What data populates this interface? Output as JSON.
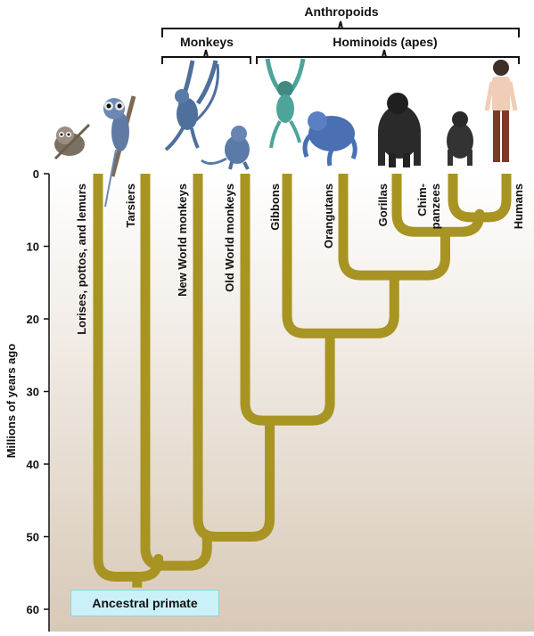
{
  "groups": {
    "anthropoids": "Anthropoids",
    "monkeys": "Monkeys",
    "hominoids": "Hominoids (apes)"
  },
  "axis": {
    "title": "Millions of years ago",
    "ticks": [
      "0",
      "10",
      "20",
      "30",
      "40",
      "50",
      "60"
    ]
  },
  "taxa": [
    "Lorises, pottos, and lemurs",
    "Tarsiers",
    "New World monkeys",
    "Old World monkeys",
    "Gibbons",
    "Orangutans",
    "Gorillas",
    "Chim-\npanzees",
    "Humans"
  ],
  "root_label": "Ancestral primate",
  "colors": {
    "branch": "#a89422",
    "background_top": "#ffffff",
    "background_bottom": "#d8c9b7",
    "root_box": "#c9f1f7"
  },
  "tree": {
    "divergence_mya": {
      "humans_chimpanzees": 6,
      "gorillas": 8,
      "orangutans": 14,
      "gibbons": 22,
      "old_world_monkeys_hominoids": 34,
      "new_world_old_world": 50,
      "tarsiers_anthropoids": 54,
      "root": 57
    }
  },
  "illustrations": [
    "loris-icon",
    "tarsier-icon",
    "spider-monkey-icon",
    "macaque-icon",
    "gibbon-icon",
    "orangutan-icon",
    "gorilla-icon",
    "chimpanzee-icon",
    "human-icon"
  ]
}
